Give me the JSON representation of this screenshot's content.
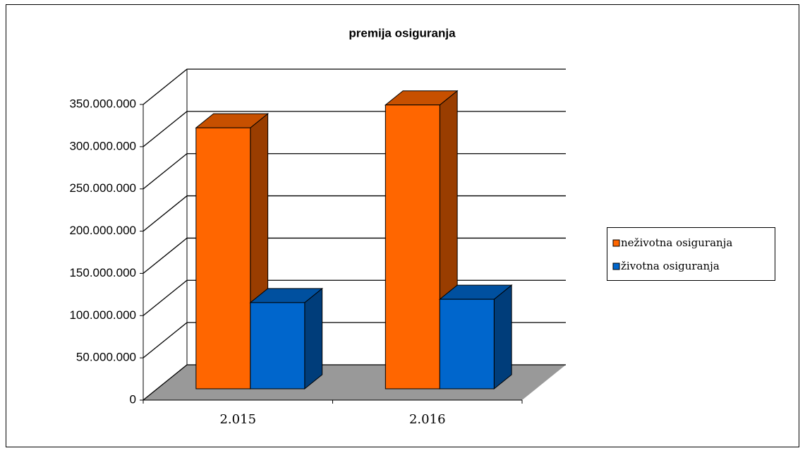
{
  "chart_data": {
    "type": "bar3d",
    "title": "premija osiguranja",
    "categories": [
      "2.015",
      "2.016"
    ],
    "series": [
      {
        "name": "neživotna osiguranja",
        "color": "#ff6600",
        "values": [
          309000000,
          336000000
        ]
      },
      {
        "name": "životna osiguranja",
        "color": "#0066cc",
        "values": [
          102000000,
          106000000
        ]
      }
    ],
    "ylim": [
      0,
      350000000
    ],
    "yticks": [
      {
        "value": 0,
        "label": "0"
      },
      {
        "value": 50000000,
        "label": "50.000.000"
      },
      {
        "value": 100000000,
        "label": "100.000.000"
      },
      {
        "value": 150000000,
        "label": "150.000.000"
      },
      {
        "value": 200000000,
        "label": "200.000.000"
      },
      {
        "value": 250000000,
        "label": "250.000.000"
      },
      {
        "value": 300000000,
        "label": "300.000.000"
      },
      {
        "value": 350000000,
        "label": "350.000.000"
      }
    ],
    "grid": true,
    "legend": "right"
  }
}
